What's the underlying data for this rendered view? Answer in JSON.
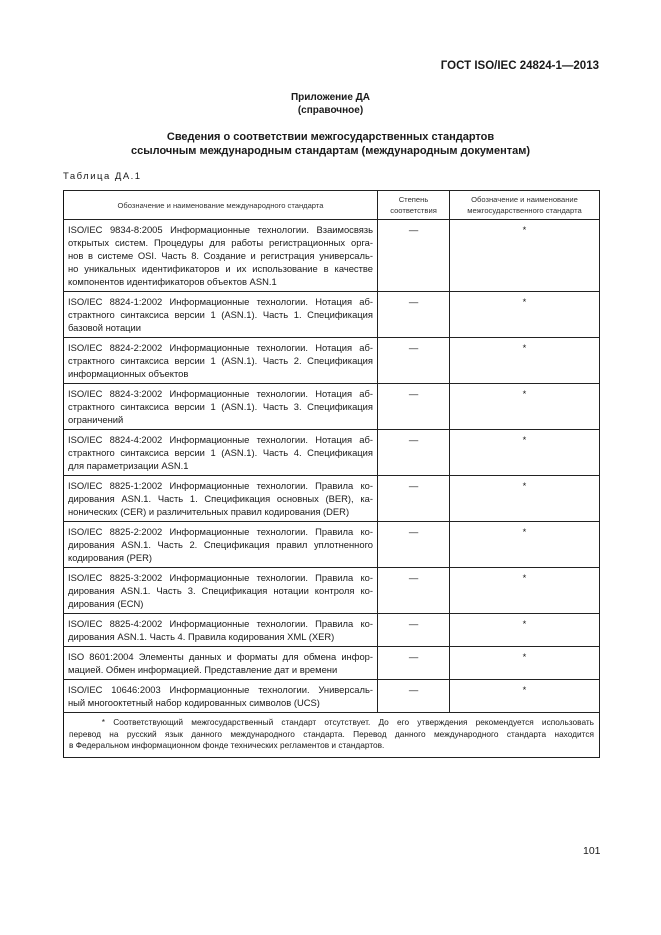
{
  "header": {
    "doc_code": "ГОСТ ISO/IEC 24824-1—2013"
  },
  "annex": {
    "title": "Приложение ДА",
    "subtitle": "(справочное)"
  },
  "title": {
    "line1": "Сведения о соответствии межгосударственных стандартов",
    "line2": "ссылочным международным стандартам (международным документам)"
  },
  "table": {
    "label": "Таблица ДА.1",
    "headers": {
      "col1": "Обозначение и наименование международного стандарта",
      "col2": "Степень соответствия",
      "col3": "Обозначение и наименование межгосударственного стандарта"
    },
    "rows": [
      {
        "lines": [
          "ISO/IEC 9834-8:2005 Информационные технологии. Взаимосвязь",
          "открытых систем. Процедуры для работы регистрационных орга-",
          "нов в системе OSI. Часть 8. Создание и регистрация универсаль-",
          "но уникальных идентификаторов и их использование в качестве",
          "компонентов идентификаторов объектов ASN.1"
        ],
        "degree": "—",
        "interstate": "*"
      },
      {
        "lines": [
          "ISO/IEC 8824-1:2002 Информационные технологии. Нотация аб-",
          "страктного синтаксиса версии 1 (ASN.1). Часть 1. Спецификация",
          "базовой нотации"
        ],
        "degree": "—",
        "interstate": "*"
      },
      {
        "lines": [
          "ISO/IEC 8824-2:2002 Информационные технологии. Нотация аб-",
          "страктного синтаксиса версии 1 (ASN.1). Часть 2. Спецификация",
          "информационных объектов"
        ],
        "degree": "—",
        "interstate": "*"
      },
      {
        "lines": [
          "ISO/IEC 8824-3:2002 Информационные технологии. Нотация аб-",
          "страктного синтаксиса версии 1 (ASN.1). Часть 3. Спецификация",
          "ограничений"
        ],
        "degree": "—",
        "interstate": "*"
      },
      {
        "lines": [
          "ISO/IEC 8824-4:2002 Информационные технологии. Нотация аб-",
          "страктного синтаксиса версии 1 (ASN.1). Часть 4. Спецификация",
          "для параметризации ASN.1"
        ],
        "degree": "—",
        "interstate": "*"
      },
      {
        "lines": [
          "ISO/IEC 8825-1:2002 Информационные технологии. Правила ко-",
          "дирования ASN.1. Часть 1. Спецификация основных (BER), ка-",
          "нонических (CER) и различительных правил кодирования (DER)"
        ],
        "degree": "—",
        "interstate": "*"
      },
      {
        "lines": [
          "ISO/IEC 8825-2:2002 Информационные технологии. Правила ко-",
          "дирования ASN.1. Часть 2. Спецификация правил уплотненного",
          "кодирования (PER)"
        ],
        "degree": "—",
        "interstate": "*"
      },
      {
        "lines": [
          "ISO/IEC 8825-3:2002 Информационные технологии. Правила ко-",
          "дирования ASN.1. Часть 3. Спецификация нотации контроля ко-",
          "дирования (ECN)"
        ],
        "degree": "—",
        "interstate": "*"
      },
      {
        "lines": [
          "ISO/IEC 8825-4:2002 Информационные технологии. Правила ко-",
          "дирования ASN.1. Часть 4. Правила кодирования XML (XER)"
        ],
        "degree": "—",
        "interstate": "*"
      },
      {
        "lines": [
          "ISO 8601:2004 Элементы данных и форматы для обмена инфор-",
          "мацией. Обмен информацией. Представление дат и времени"
        ],
        "degree": "—",
        "interstate": "*"
      },
      {
        "lines": [
          "ISO/IEC 10646:2003 Информационные технологии. Универсаль-",
          "ный многооктетный набор кодированных символов (UCS)"
        ],
        "degree": "—",
        "interstate": "*"
      }
    ],
    "footnote": [
      "    * Соответствующий межгосударственный стандарт отсутствует. До его утверждения рекомендуется использовать",
      "перевод на русский язык данного международного стандарта. Перевод данного международного стандарта находится",
      "в Федеральном информационном фонде технических регламентов и стандартов."
    ]
  },
  "page_number": "101"
}
